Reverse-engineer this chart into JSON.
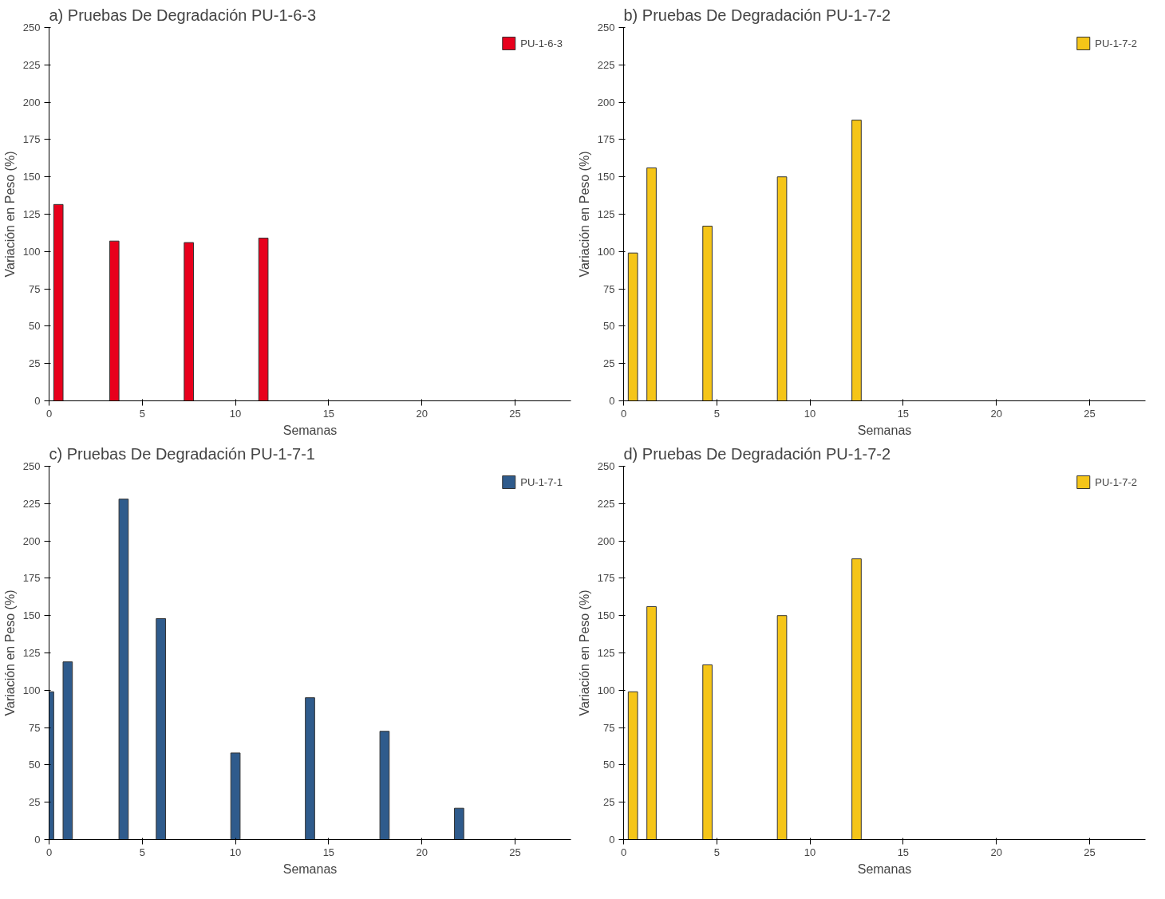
{
  "chart_data": [
    {
      "type": "bar",
      "title": "a) Pruebas De Degradación PU-1-6-3",
      "xlabel": "Semanas",
      "ylabel": "Variación en Peso (%)",
      "x": [
        0.5,
        3.5,
        7.5,
        11.5
      ],
      "series": [
        {
          "name": "PU-1-6-3",
          "color": "#e8001c",
          "values": [
            131.5,
            107,
            106,
            109
          ]
        }
      ],
      "xlim": [
        0,
        28
      ],
      "ylim": [
        0,
        250
      ],
      "xticks": [
        0,
        5,
        10,
        15,
        20,
        25
      ],
      "yticks": [
        0,
        25,
        50,
        75,
        100,
        125,
        150,
        175,
        200,
        225,
        250
      ],
      "legend": "top right",
      "grid": false
    },
    {
      "type": "bar",
      "title": "b) Pruebas De Degradación PU-1-7-2",
      "xlabel": "Semanas",
      "ylabel": "Variación en Peso (%)",
      "x": [
        0.5,
        1.5,
        4.5,
        8.5,
        12.5
      ],
      "series": [
        {
          "name": "PU-1-7-2",
          "color": "#f5c518",
          "values": [
            99,
            156,
            117,
            150,
            188
          ]
        }
      ],
      "xlim": [
        0,
        28
      ],
      "ylim": [
        0,
        250
      ],
      "xticks": [
        0,
        5,
        10,
        15,
        20,
        25
      ],
      "yticks": [
        0,
        25,
        50,
        75,
        100,
        125,
        150,
        175,
        200,
        225,
        250
      ],
      "legend": "top right",
      "grid": false
    },
    {
      "type": "bar",
      "title": "c) Pruebas De Degradación PU-1-7-1",
      "xlabel": "Semanas",
      "ylabel": "Variación en Peso (%)",
      "x": [
        0,
        1,
        4,
        6,
        10,
        14,
        18,
        22
      ],
      "series": [
        {
          "name": "PU-1-7-1",
          "color": "#2f5b8c",
          "values": [
            99,
            119,
            228,
            148,
            58,
            95,
            72.5,
            21
          ]
        }
      ],
      "xlim": [
        0,
        28
      ],
      "ylim": [
        0,
        250
      ],
      "xticks": [
        0,
        5,
        10,
        15,
        20,
        25
      ],
      "yticks": [
        0,
        25,
        50,
        75,
        100,
        125,
        150,
        175,
        200,
        225,
        250
      ],
      "legend": "top right",
      "grid": false
    },
    {
      "type": "bar",
      "title": "d) Pruebas De Degradación PU-1-7-2",
      "xlabel": "Semanas",
      "ylabel": "Variación en Peso (%)",
      "x": [
        0.5,
        1.5,
        4.5,
        8.5,
        12.5
      ],
      "series": [
        {
          "name": "PU-1-7-2",
          "color": "#f5c518",
          "values": [
            99,
            156,
            117,
            150,
            188
          ]
        }
      ],
      "xlim": [
        0,
        28
      ],
      "ylim": [
        0,
        250
      ],
      "xticks": [
        0,
        5,
        10,
        15,
        20,
        25
      ],
      "yticks": [
        0,
        25,
        50,
        75,
        100,
        125,
        150,
        175,
        200,
        225,
        250
      ],
      "legend": "top right",
      "grid": false
    }
  ]
}
